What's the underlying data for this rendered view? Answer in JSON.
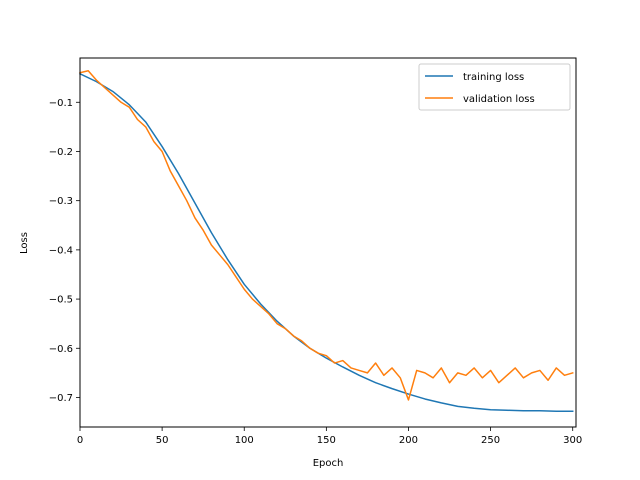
{
  "chart_data": {
    "type": "line",
    "title": "",
    "xlabel": "Epoch",
    "ylabel": "Loss",
    "xlim": [
      0,
      302
    ],
    "ylim": [
      -0.76,
      -0.01
    ],
    "xticks": [
      0,
      50,
      100,
      150,
      200,
      250,
      300
    ],
    "yticks": [
      -0.1,
      -0.2,
      -0.3,
      -0.4,
      -0.5,
      -0.6,
      -0.7
    ],
    "xtick_labels": [
      "0",
      "50",
      "100",
      "150",
      "200",
      "250",
      "300"
    ],
    "ytick_labels": [
      "−0.1",
      "−0.2",
      "−0.3",
      "−0.4",
      "−0.5",
      "−0.6",
      "−0.7"
    ],
    "grid": false,
    "legend_position": "top-right",
    "series": [
      {
        "name": "training loss",
        "color": "#1f77b4",
        "points": [
          [
            0,
            -0.042
          ],
          [
            10,
            -0.058
          ],
          [
            20,
            -0.078
          ],
          [
            30,
            -0.105
          ],
          [
            40,
            -0.14
          ],
          [
            50,
            -0.19
          ],
          [
            60,
            -0.245
          ],
          [
            70,
            -0.305
          ],
          [
            80,
            -0.365
          ],
          [
            90,
            -0.42
          ],
          [
            100,
            -0.47
          ],
          [
            110,
            -0.51
          ],
          [
            120,
            -0.545
          ],
          [
            130,
            -0.575
          ],
          [
            140,
            -0.6
          ],
          [
            150,
            -0.62
          ],
          [
            160,
            -0.638
          ],
          [
            170,
            -0.655
          ],
          [
            180,
            -0.67
          ],
          [
            190,
            -0.682
          ],
          [
            200,
            -0.693
          ],
          [
            210,
            -0.703
          ],
          [
            220,
            -0.711
          ],
          [
            230,
            -0.718
          ],
          [
            240,
            -0.722
          ],
          [
            250,
            -0.725
          ],
          [
            260,
            -0.726
          ],
          [
            270,
            -0.727
          ],
          [
            280,
            -0.727
          ],
          [
            290,
            -0.728
          ],
          [
            300,
            -0.728
          ]
        ]
      },
      {
        "name": "validation loss",
        "color": "#ff7f0e",
        "points": [
          [
            0,
            -0.04
          ],
          [
            5,
            -0.036
          ],
          [
            10,
            -0.055
          ],
          [
            15,
            -0.07
          ],
          [
            20,
            -0.085
          ],
          [
            25,
            -0.1
          ],
          [
            30,
            -0.11
          ],
          [
            35,
            -0.135
          ],
          [
            40,
            -0.15
          ],
          [
            45,
            -0.18
          ],
          [
            50,
            -0.2
          ],
          [
            55,
            -0.24
          ],
          [
            60,
            -0.27
          ],
          [
            65,
            -0.3
          ],
          [
            70,
            -0.335
          ],
          [
            75,
            -0.36
          ],
          [
            80,
            -0.39
          ],
          [
            85,
            -0.41
          ],
          [
            90,
            -0.43
          ],
          [
            95,
            -0.455
          ],
          [
            100,
            -0.48
          ],
          [
            105,
            -0.5
          ],
          [
            110,
            -0.515
          ],
          [
            115,
            -0.53
          ],
          [
            120,
            -0.55
          ],
          [
            125,
            -0.56
          ],
          [
            130,
            -0.575
          ],
          [
            135,
            -0.585
          ],
          [
            140,
            -0.6
          ],
          [
            145,
            -0.61
          ],
          [
            150,
            -0.615
          ],
          [
            155,
            -0.63
          ],
          [
            160,
            -0.625
          ],
          [
            165,
            -0.64
          ],
          [
            170,
            -0.645
          ],
          [
            175,
            -0.65
          ],
          [
            180,
            -0.63
          ],
          [
            185,
            -0.655
          ],
          [
            190,
            -0.64
          ],
          [
            195,
            -0.66
          ],
          [
            200,
            -0.705
          ],
          [
            205,
            -0.645
          ],
          [
            210,
            -0.65
          ],
          [
            215,
            -0.66
          ],
          [
            220,
            -0.64
          ],
          [
            225,
            -0.67
          ],
          [
            230,
            -0.65
          ],
          [
            235,
            -0.655
          ],
          [
            240,
            -0.64
          ],
          [
            245,
            -0.66
          ],
          [
            250,
            -0.645
          ],
          [
            255,
            -0.67
          ],
          [
            260,
            -0.655
          ],
          [
            265,
            -0.64
          ],
          [
            270,
            -0.66
          ],
          [
            275,
            -0.65
          ],
          [
            280,
            -0.645
          ],
          [
            285,
            -0.665
          ],
          [
            290,
            -0.64
          ],
          [
            295,
            -0.655
          ],
          [
            300,
            -0.65
          ]
        ]
      }
    ]
  }
}
